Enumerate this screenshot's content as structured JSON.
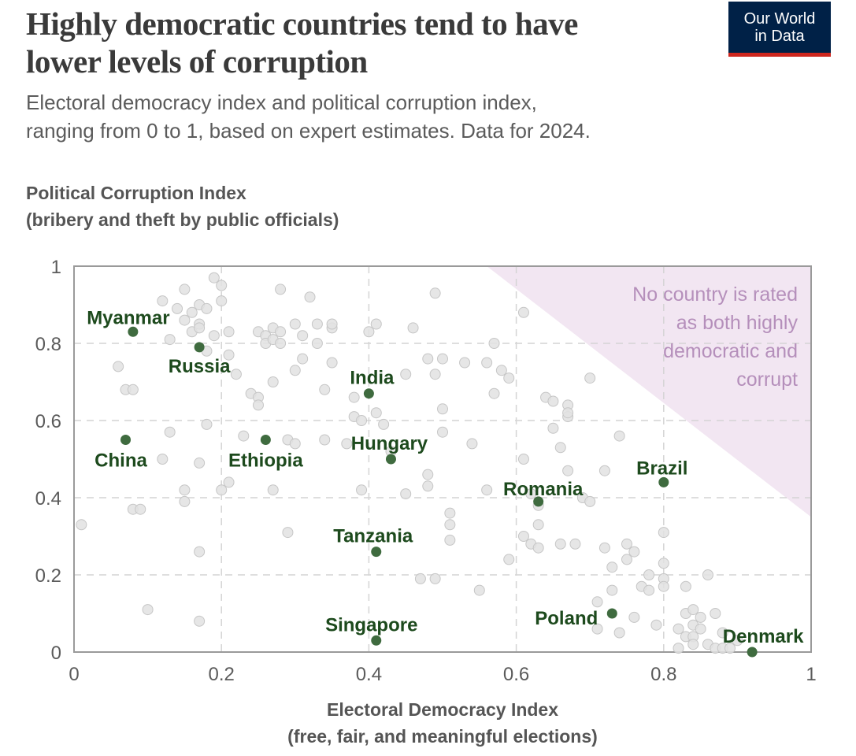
{
  "header": {
    "title_line1": "Highly democratic countries tend to have",
    "title_line2": "lower levels of corruption",
    "subtitle_line1": "Electoral democracy index and political corruption index,",
    "subtitle_line2": "ranging from 0 to 1, based on expert estimates. Data for 2024.",
    "logo_line1": "Our World",
    "logo_line2": "in Data"
  },
  "colors": {
    "highlight": "#3f6b3f",
    "highlight_label": "#1d4a1d",
    "background_point": "#e2e2e2",
    "background_point_stroke": "#c6c6c6",
    "annotation_region": "#f2e6f2",
    "annotation_text": "#b58fbb",
    "logo_bg": "#002147",
    "logo_stripe": "#ce261e"
  },
  "chart_data": {
    "type": "scatter",
    "title": "Highly democratic countries tend to have lower levels of corruption",
    "xlabel_line1": "Electoral Democracy Index",
    "xlabel_line2": "(free, fair, and meaningful elections)",
    "ylabel_line1": "Political Corruption Index",
    "ylabel_line2": "(bribery and theft by public officials)",
    "xlim": [
      0,
      1
    ],
    "ylim": [
      0,
      1
    ],
    "xticks": [
      0,
      0.2,
      0.4,
      0.6,
      0.8,
      1
    ],
    "yticks": [
      0,
      0.2,
      0.4,
      0.6,
      0.8,
      1
    ],
    "xtick_labels": [
      "0",
      "0.2",
      "0.4",
      "0.6",
      "0.8",
      "1"
    ],
    "ytick_labels": [
      "0",
      "0.2",
      "0.4",
      "0.6",
      "0.8",
      "1"
    ],
    "grid": true,
    "annotation": {
      "lines": [
        "No country is rated",
        "as both highly",
        "democratic and",
        "corrupt"
      ],
      "region_corners": [
        [
          0.56,
          1
        ],
        [
          1,
          1
        ],
        [
          1,
          0.35
        ]
      ]
    },
    "highlighted": [
      {
        "name": "Myanmar",
        "x": 0.08,
        "y": 0.83
      },
      {
        "name": "Russia",
        "x": 0.17,
        "y": 0.79
      },
      {
        "name": "China",
        "x": 0.07,
        "y": 0.55
      },
      {
        "name": "Ethiopia",
        "x": 0.26,
        "y": 0.55
      },
      {
        "name": "India",
        "x": 0.4,
        "y": 0.67
      },
      {
        "name": "Hungary",
        "x": 0.43,
        "y": 0.5
      },
      {
        "name": "Tanzania",
        "x": 0.41,
        "y": 0.26
      },
      {
        "name": "Singapore",
        "x": 0.41,
        "y": 0.03
      },
      {
        "name": "Romania",
        "x": 0.63,
        "y": 0.39
      },
      {
        "name": "Brazil",
        "x": 0.8,
        "y": 0.44
      },
      {
        "name": "Poland",
        "x": 0.73,
        "y": 0.1
      },
      {
        "name": "Denmark",
        "x": 0.92,
        "y": 0.0
      }
    ],
    "background_points": [
      [
        0.01,
        0.33
      ],
      [
        0.06,
        0.74
      ],
      [
        0.07,
        0.68
      ],
      [
        0.08,
        0.68
      ],
      [
        0.08,
        0.37
      ],
      [
        0.09,
        0.37
      ],
      [
        0.1,
        0.11
      ],
      [
        0.12,
        0.91
      ],
      [
        0.12,
        0.5
      ],
      [
        0.13,
        0.57
      ],
      [
        0.13,
        0.81
      ],
      [
        0.14,
        0.89
      ],
      [
        0.15,
        0.94
      ],
      [
        0.15,
        0.86
      ],
      [
        0.15,
        0.39
      ],
      [
        0.15,
        0.42
      ],
      [
        0.16,
        0.88
      ],
      [
        0.16,
        0.83
      ],
      [
        0.17,
        0.9
      ],
      [
        0.17,
        0.85
      ],
      [
        0.17,
        0.84
      ],
      [
        0.17,
        0.49
      ],
      [
        0.17,
        0.26
      ],
      [
        0.17,
        0.08
      ],
      [
        0.18,
        0.89
      ],
      [
        0.18,
        0.78
      ],
      [
        0.18,
        0.59
      ],
      [
        0.19,
        0.82
      ],
      [
        0.19,
        0.97
      ],
      [
        0.2,
        0.91
      ],
      [
        0.2,
        0.95
      ],
      [
        0.2,
        0.42
      ],
      [
        0.21,
        0.83
      ],
      [
        0.21,
        0.77
      ],
      [
        0.21,
        0.44
      ],
      [
        0.22,
        0.72
      ],
      [
        0.23,
        0.56
      ],
      [
        0.24,
        0.67
      ],
      [
        0.25,
        0.83
      ],
      [
        0.25,
        0.66
      ],
      [
        0.25,
        0.64
      ],
      [
        0.26,
        0.82
      ],
      [
        0.26,
        0.8
      ],
      [
        0.27,
        0.84
      ],
      [
        0.27,
        0.81
      ],
      [
        0.27,
        0.7
      ],
      [
        0.27,
        0.42
      ],
      [
        0.28,
        0.83
      ],
      [
        0.28,
        0.8
      ],
      [
        0.28,
        0.94
      ],
      [
        0.29,
        0.31
      ],
      [
        0.29,
        0.55
      ],
      [
        0.3,
        0.85
      ],
      [
        0.3,
        0.73
      ],
      [
        0.3,
        0.54
      ],
      [
        0.31,
        0.76
      ],
      [
        0.31,
        0.82
      ],
      [
        0.32,
        0.92
      ],
      [
        0.33,
        0.8
      ],
      [
        0.33,
        0.85
      ],
      [
        0.34,
        0.55
      ],
      [
        0.34,
        0.68
      ],
      [
        0.35,
        0.84
      ],
      [
        0.35,
        0.85
      ],
      [
        0.35,
        0.75
      ],
      [
        0.37,
        0.54
      ],
      [
        0.38,
        0.66
      ],
      [
        0.38,
        0.61
      ],
      [
        0.39,
        0.6
      ],
      [
        0.39,
        0.42
      ],
      [
        0.4,
        0.83
      ],
      [
        0.41,
        0.85
      ],
      [
        0.41,
        0.62
      ],
      [
        0.42,
        0.59
      ],
      [
        0.43,
        0.52
      ],
      [
        0.45,
        0.72
      ],
      [
        0.45,
        0.41
      ],
      [
        0.46,
        0.84
      ],
      [
        0.47,
        0.19
      ],
      [
        0.48,
        0.76
      ],
      [
        0.48,
        0.46
      ],
      [
        0.48,
        0.43
      ],
      [
        0.49,
        0.93
      ],
      [
        0.49,
        0.72
      ],
      [
        0.49,
        0.19
      ],
      [
        0.5,
        0.76
      ],
      [
        0.5,
        0.63
      ],
      [
        0.5,
        0.57
      ],
      [
        0.51,
        0.36
      ],
      [
        0.51,
        0.33
      ],
      [
        0.51,
        0.29
      ],
      [
        0.53,
        0.75
      ],
      [
        0.54,
        0.54
      ],
      [
        0.55,
        0.16
      ],
      [
        0.56,
        0.75
      ],
      [
        0.56,
        0.42
      ],
      [
        0.57,
        0.67
      ],
      [
        0.57,
        0.8
      ],
      [
        0.58,
        0.73
      ],
      [
        0.59,
        0.71
      ],
      [
        0.59,
        0.24
      ],
      [
        0.61,
        0.88
      ],
      [
        0.61,
        0.5
      ],
      [
        0.61,
        0.3
      ],
      [
        0.62,
        0.28
      ],
      [
        0.62,
        0.41
      ],
      [
        0.63,
        0.38
      ],
      [
        0.63,
        0.33
      ],
      [
        0.63,
        0.27
      ],
      [
        0.64,
        0.66
      ],
      [
        0.65,
        0.58
      ],
      [
        0.65,
        0.65
      ],
      [
        0.66,
        0.28
      ],
      [
        0.66,
        0.53
      ],
      [
        0.67,
        0.47
      ],
      [
        0.67,
        0.61
      ],
      [
        0.67,
        0.64
      ],
      [
        0.67,
        0.62
      ],
      [
        0.68,
        0.28
      ],
      [
        0.69,
        0.4
      ],
      [
        0.7,
        0.39
      ],
      [
        0.7,
        0.71
      ],
      [
        0.71,
        0.13
      ],
      [
        0.71,
        0.06
      ],
      [
        0.72,
        0.27
      ],
      [
        0.72,
        0.47
      ],
      [
        0.73,
        0.22
      ],
      [
        0.73,
        0.16
      ],
      [
        0.74,
        0.05
      ],
      [
        0.74,
        0.56
      ],
      [
        0.75,
        0.24
      ],
      [
        0.75,
        0.28
      ],
      [
        0.76,
        0.26
      ],
      [
        0.76,
        0.09
      ],
      [
        0.77,
        0.17
      ],
      [
        0.78,
        0.2
      ],
      [
        0.78,
        0.16
      ],
      [
        0.79,
        0.07
      ],
      [
        0.8,
        0.31
      ],
      [
        0.8,
        0.23
      ],
      [
        0.8,
        0.19
      ],
      [
        0.8,
        0.17
      ],
      [
        0.82,
        0.06
      ],
      [
        0.82,
        0.01
      ],
      [
        0.83,
        0.1
      ],
      [
        0.83,
        0.04
      ],
      [
        0.83,
        0.17
      ],
      [
        0.84,
        0.11
      ],
      [
        0.84,
        0.07
      ],
      [
        0.84,
        0.04
      ],
      [
        0.84,
        0.02
      ],
      [
        0.85,
        0.09
      ],
      [
        0.85,
        0.06
      ],
      [
        0.86,
        0.02
      ],
      [
        0.86,
        0.2
      ],
      [
        0.87,
        0.1
      ],
      [
        0.87,
        0.01
      ],
      [
        0.88,
        0.01
      ],
      [
        0.88,
        0.05
      ],
      [
        0.89,
        0.01
      ],
      [
        0.9,
        0.03
      ]
    ]
  }
}
